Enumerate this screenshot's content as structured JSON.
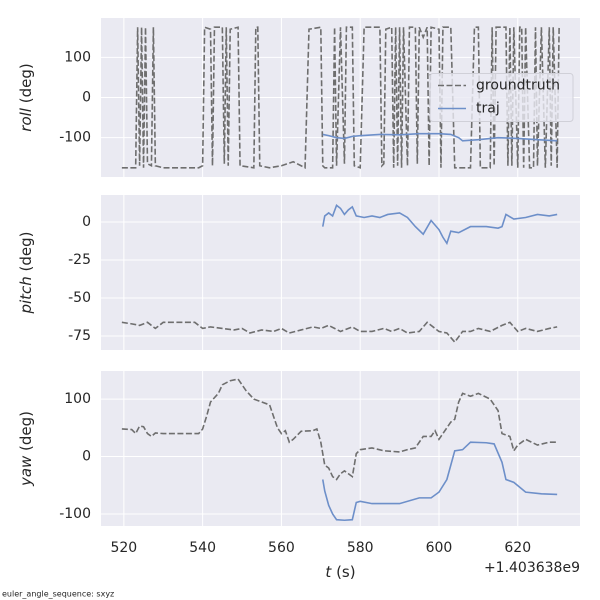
{
  "footnote": "euler_angle_sequence: sxyz",
  "chart_data": [
    {
      "type": "line",
      "ylabel": {
        "var": "roll",
        "unit": "(deg)"
      },
      "grid": true,
      "legend": "center right",
      "xlim": [
        514.2,
        635.8
      ],
      "xticks": [
        520,
        540,
        560,
        580,
        600,
        620
      ],
      "ylim": [
        -198,
        198
      ],
      "yticks": [
        -100,
        0,
        100
      ],
      "series": [
        {
          "name": "groundtruth",
          "color": "#6e6e6e",
          "linestyle": "dashed",
          "x": [
            519.5,
            523,
            523.5,
            524,
            524.5,
            525,
            525.5,
            526,
            527,
            527.5,
            528,
            530,
            534,
            539,
            540,
            540.5,
            542,
            542.5,
            543,
            545,
            545.5,
            546,
            546.5,
            547,
            549,
            549.5,
            553,
            553.5,
            554,
            554.5,
            557,
            560,
            563,
            565,
            566,
            567,
            570,
            570.5,
            571,
            573,
            573.5,
            574,
            575,
            576,
            576.5,
            578,
            578.5,
            580,
            581,
            585,
            585.5,
            586,
            586.5,
            588,
            588.5,
            589,
            589.5,
            590,
            590.5,
            591,
            592,
            592.5,
            594,
            594.5,
            595,
            596,
            597,
            597.5,
            598,
            600,
            600.5,
            601,
            603,
            604,
            608,
            609,
            610,
            610.5,
            613,
            613.5,
            614,
            614.5,
            617,
            617.5,
            618,
            618.5,
            619,
            620,
            620.5,
            621,
            621.5,
            622,
            623,
            624,
            624.5,
            625,
            626,
            627,
            628,
            628.5,
            629,
            630,
            630.5
          ],
          "values": [
            -175,
            -175,
            175,
            -170,
            175,
            -175,
            175,
            -165,
            -170,
            175,
            -170,
            -175,
            -175,
            -175,
            -170,
            175,
            170,
            -170,
            175,
            175,
            -165,
            175,
            -170,
            170,
            175,
            -170,
            -175,
            175,
            175,
            -170,
            -175,
            -170,
            -160,
            -170,
            -175,
            170,
            175,
            -170,
            -175,
            -175,
            175,
            -170,
            175,
            -165,
            175,
            175,
            -170,
            -175,
            175,
            175,
            -170,
            -165,
            170,
            175,
            -175,
            175,
            -170,
            175,
            -175,
            175,
            -170,
            175,
            175,
            -165,
            175,
            150,
            175,
            -170,
            175,
            170,
            -175,
            175,
            175,
            -175,
            -175,
            175,
            175,
            -175,
            -175,
            175,
            -170,
            175,
            175,
            -170,
            175,
            -170,
            175,
            -175,
            175,
            175,
            -175,
            175,
            -175,
            -175,
            175,
            -170,
            175,
            -175,
            175,
            -170,
            175,
            -175,
            175
          ]
        },
        {
          "name": "traj",
          "color": "#6d8fc9",
          "linestyle": "solid",
          "x": [
            570.5,
            572,
            574,
            576,
            578,
            580,
            585,
            590,
            595,
            600,
            603,
            605,
            606,
            610,
            615,
            620,
            625,
            630
          ],
          "values": [
            -92,
            -95,
            -100,
            -102,
            -97,
            -95,
            -92,
            -93,
            -90,
            -90,
            -92,
            -100,
            -108,
            -105,
            -100,
            -102,
            -105,
            -108
          ]
        }
      ]
    },
    {
      "type": "line",
      "ylabel": {
        "var": "pitch",
        "unit": "(deg)"
      },
      "grid": true,
      "xlim": [
        514.2,
        635.8
      ],
      "xticks": [
        520,
        540,
        560,
        580,
        600,
        620
      ],
      "ylim": [
        -84.2,
        17.8
      ],
      "yticks": [
        -75,
        -50,
        -25,
        0
      ],
      "series": [
        {
          "color": "#6e6e6e",
          "linestyle": "dashed",
          "x": [
            519.5,
            522,
            524,
            526,
            528,
            530,
            535,
            538,
            540,
            542,
            545,
            548,
            550,
            552,
            555,
            558,
            560,
            562,
            565,
            568,
            570,
            572,
            575,
            578,
            580,
            583,
            586,
            588,
            590,
            592,
            595,
            597,
            600,
            602,
            604,
            606,
            608,
            610,
            613,
            616,
            618,
            620,
            622,
            625,
            628,
            630
          ],
          "values": [
            -66,
            -67,
            -68,
            -66,
            -70,
            -66,
            -66,
            -66,
            -70,
            -69,
            -70,
            -71,
            -70,
            -73,
            -71,
            -72,
            -70,
            -73,
            -71,
            -69,
            -70,
            -68,
            -72,
            -69,
            -72,
            -72,
            -70,
            -72,
            -70,
            -73,
            -72,
            -66,
            -72,
            -73,
            -79,
            -72,
            -72,
            -70,
            -72,
            -68,
            -66,
            -72,
            -70,
            -72,
            -70,
            -69
          ]
        },
        {
          "color": "#6d8fc9",
          "linestyle": "solid",
          "x": [
            570.5,
            571,
            572,
            573,
            574,
            575,
            576,
            577,
            578,
            579,
            581,
            583,
            585,
            587,
            590,
            592,
            594,
            596,
            598,
            600,
            601,
            602,
            603,
            605,
            608,
            612,
            615,
            616,
            617,
            619,
            622,
            625,
            628,
            630
          ],
          "values": [
            -3,
            4,
            6,
            4,
            11,
            9,
            5,
            8,
            10,
            4,
            3,
            4,
            3,
            5,
            6,
            3,
            -3,
            -8,
            1,
            -5,
            -10,
            -14,
            -6,
            -7,
            -3,
            -3,
            -4,
            -3,
            5,
            2,
            3,
            5,
            4,
            5
          ]
        }
      ]
    },
    {
      "type": "line",
      "ylabel": {
        "var": "yaw",
        "unit": "(deg)"
      },
      "xlabel": {
        "var": "t",
        "unit": "(s)"
      },
      "x_offset_label": "+1.403638e9",
      "grid": true,
      "xlim": [
        514.2,
        635.8
      ],
      "xticks": [
        520,
        540,
        560,
        580,
        600,
        620
      ],
      "ylim": [
        -121,
        149
      ],
      "yticks": [
        -100,
        0,
        100
      ],
      "series": [
        {
          "color": "#6e6e6e",
          "linestyle": "dashed",
          "x": [
            519.5,
            522,
            523,
            524,
            525,
            526,
            527,
            528,
            530,
            535,
            539,
            540,
            541,
            542,
            544,
            545,
            547,
            549,
            551,
            553,
            555,
            557,
            558,
            559,
            560,
            561,
            562,
            563,
            565,
            568,
            569,
            570,
            571,
            572,
            573,
            574,
            575,
            576,
            578,
            579,
            580,
            583,
            586,
            590,
            592,
            594,
            596,
            598,
            599,
            600,
            601,
            602,
            603,
            604,
            605,
            606,
            608,
            610,
            613,
            615,
            616,
            618,
            619,
            620,
            622,
            625,
            628,
            630
          ],
          "values": [
            48,
            47,
            40,
            53,
            52,
            40,
            35,
            41,
            40,
            40,
            40,
            48,
            70,
            95,
            110,
            125,
            132,
            135,
            115,
            100,
            95,
            90,
            70,
            50,
            40,
            45,
            25,
            30,
            44,
            45,
            48,
            25,
            -15,
            -20,
            -35,
            -40,
            -30,
            -25,
            -35,
            5,
            12,
            15,
            10,
            8,
            12,
            15,
            35,
            35,
            45,
            30,
            40,
            50,
            60,
            65,
            95,
            110,
            105,
            110,
            100,
            80,
            40,
            35,
            10,
            20,
            30,
            20,
            25,
            25
          ]
        },
        {
          "color": "#6d8fc9",
          "linestyle": "solid",
          "x": [
            570.5,
            571,
            572,
            573,
            574,
            576,
            578,
            579,
            580,
            583,
            590,
            595,
            598,
            600,
            602,
            604,
            606,
            608,
            612,
            614,
            616,
            617,
            619,
            622,
            626,
            630
          ],
          "values": [
            -40,
            -60,
            -85,
            -100,
            -110,
            -111,
            -110,
            -80,
            -78,
            -82,
            -82,
            -72,
            -72,
            -62,
            -40,
            10,
            12,
            25,
            24,
            22,
            -10,
            -40,
            -45,
            -62,
            -65,
            -66
          ]
        }
      ]
    }
  ]
}
